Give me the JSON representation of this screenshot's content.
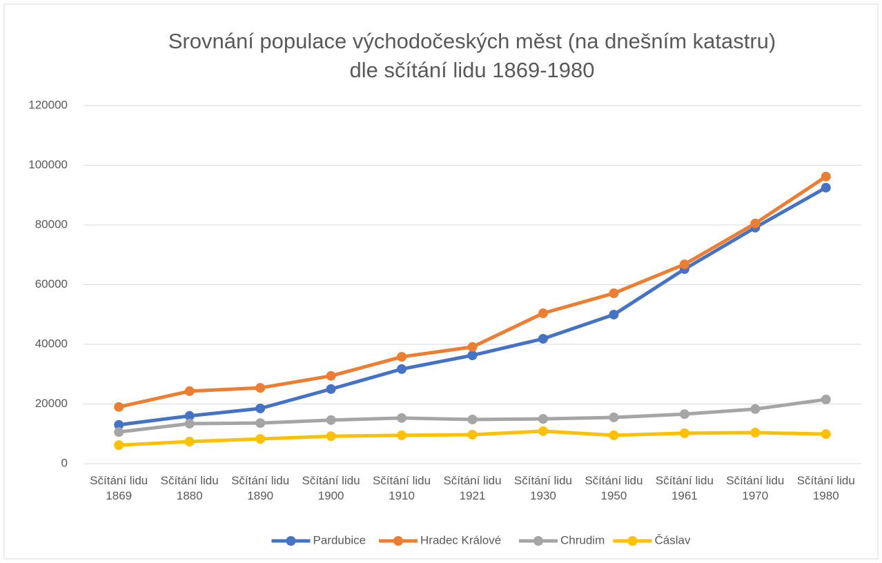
{
  "chart_data": {
    "type": "line",
    "title": [
      "Srovnání populace východočeských měst (na dnešním katastru)",
      "dle sčítání lidu 1869-1980"
    ],
    "categories": [
      "Sčítání lidu 1869",
      "Sčítání lidu 1880",
      "Sčítání lidu 1890",
      "Sčítání lidu 1900",
      "Sčítání lidu 1910",
      "Sčítání lidu 1921",
      "Sčítání lidu 1930",
      "Sčítání lidu 1950",
      "Sčítání lidu 1961",
      "Sčítání lidu 1970",
      "Sčítání lidu 1980"
    ],
    "series": [
      {
        "name": "Pardubice",
        "color": "#4472c4",
        "values": [
          13000,
          16000,
          18500,
          25000,
          31700,
          36300,
          41850,
          49950,
          65200,
          79100,
          92500
        ]
      },
      {
        "name": "Hradec Králové",
        "color": "#ed7d31",
        "values": [
          19000,
          24300,
          25400,
          29400,
          35800,
          39100,
          50400,
          57100,
          66800,
          80500,
          96200
        ]
      },
      {
        "name": "Chrudim",
        "color": "#a5a5a5",
        "values": [
          10600,
          13400,
          13600,
          14600,
          15300,
          14800,
          15000,
          15500,
          16600,
          18300,
          21500
        ]
      },
      {
        "name": "Čáslav",
        "color": "#ffc000",
        "values": [
          6200,
          7400,
          8300,
          9200,
          9500,
          9700,
          10900,
          9500,
          10200,
          10400,
          9900
        ]
      }
    ],
    "ylim": [
      0,
      120000
    ],
    "yticks": [
      0,
      20000,
      40000,
      60000,
      80000,
      100000,
      120000
    ],
    "grid": true,
    "legend": "bottom"
  }
}
